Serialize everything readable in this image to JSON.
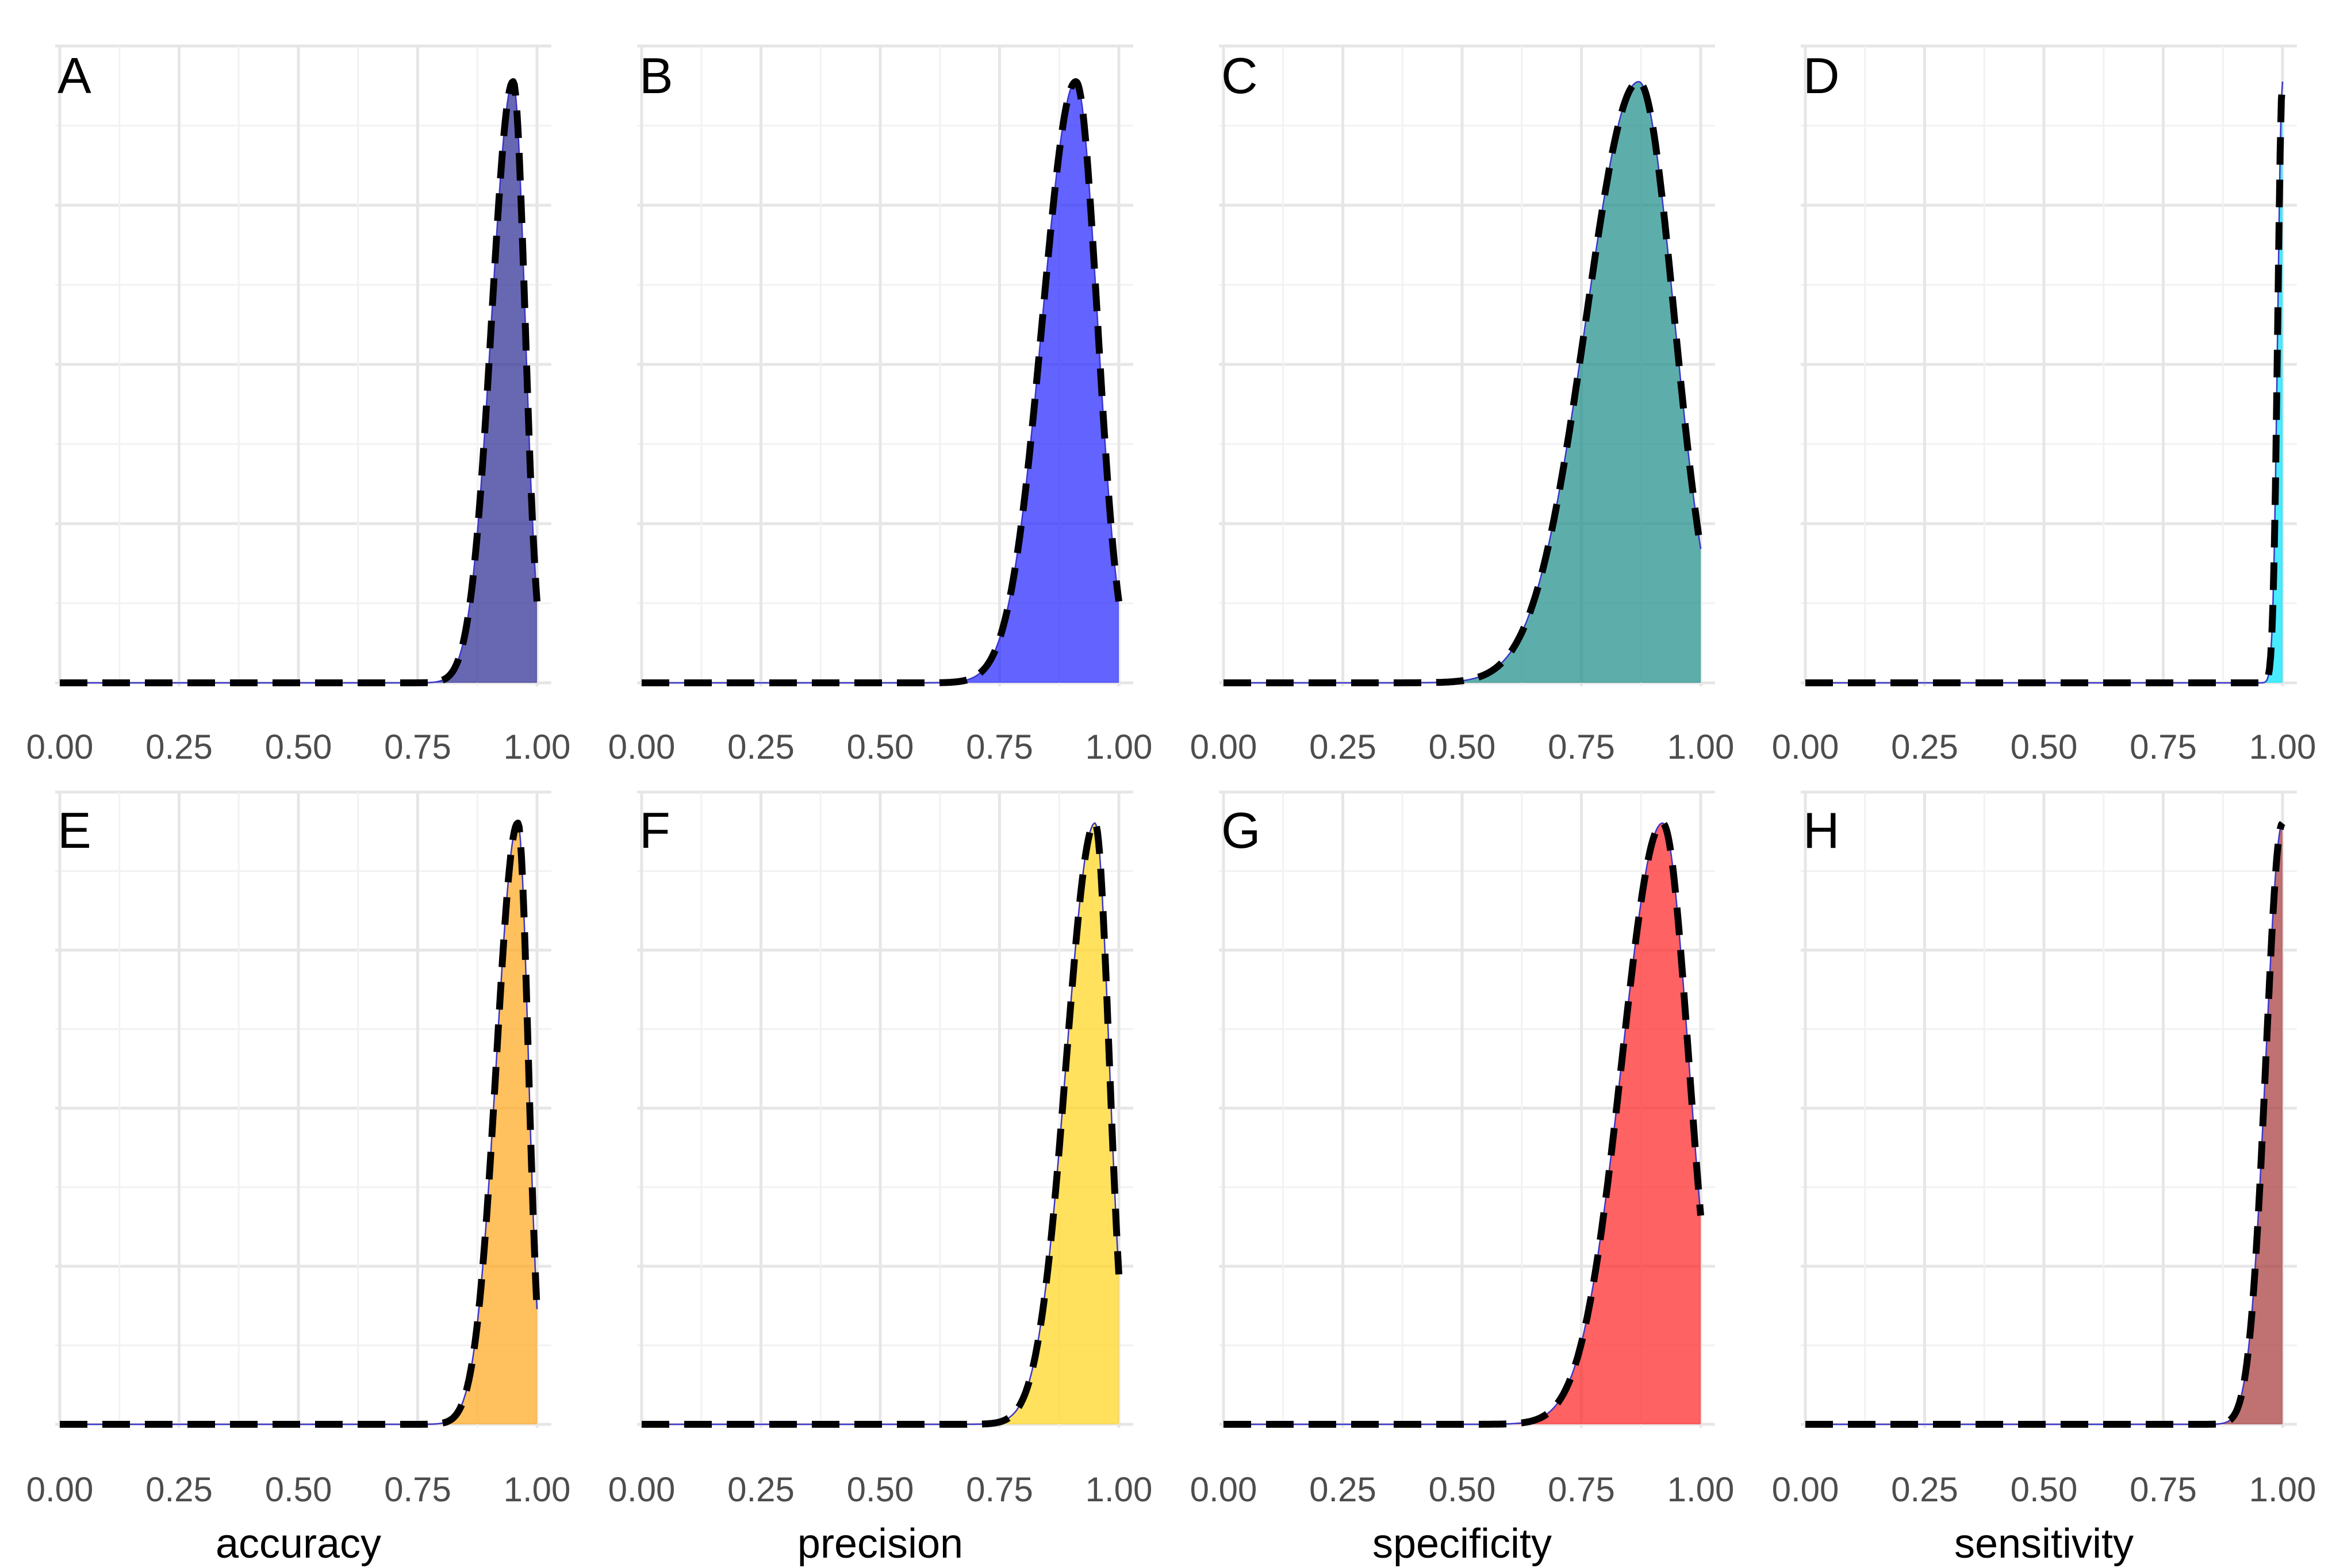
{
  "chart_data": [
    {
      "type": "area",
      "panel": "A",
      "xlabel": "",
      "xlim": [
        0,
        1
      ],
      "xticks": [
        "0.00",
        "0.25",
        "0.50",
        "0.75",
        "1.00"
      ],
      "fill_color": "#2e2e94",
      "peak": 0.95,
      "left_spread": 0.045,
      "right_spread": 0.025,
      "density_at_1": 0.35
    },
    {
      "type": "area",
      "panel": "B",
      "xlabel": "",
      "xlim": [
        0,
        1
      ],
      "xticks": [
        "0.00",
        "0.25",
        "0.50",
        "0.75",
        "1.00"
      ],
      "fill_color": "#2727ff",
      "peak": 0.91,
      "left_spread": 0.07,
      "right_spread": 0.045,
      "density_at_1": 0.34
    },
    {
      "type": "area",
      "panel": "C",
      "xlabel": "",
      "xlim": [
        0,
        1
      ],
      "xticks": [
        "0.00",
        "0.25",
        "0.50",
        "0.75",
        "1.00"
      ],
      "fill_color": "#1f8f8a",
      "peak": 0.87,
      "left_spread": 0.11,
      "right_spread": 0.075,
      "density_at_1": 0.33
    },
    {
      "type": "area",
      "panel": "D",
      "xlabel": "",
      "xlim": [
        0,
        1
      ],
      "xticks": [
        "0.00",
        "0.25",
        "0.50",
        "0.75",
        "1.00"
      ],
      "fill_color": "#00e5ff",
      "peak": 1.0,
      "left_spread": 0.01,
      "right_spread": 0.01,
      "density_at_1": 1.0
    },
    {
      "type": "area",
      "panel": "E",
      "xlabel": "accuracy",
      "xlim": [
        0,
        1
      ],
      "xticks": [
        "0.00",
        "0.25",
        "0.50",
        "0.75",
        "1.00"
      ],
      "fill_color": "#ffa820",
      "peak": 0.96,
      "left_spread": 0.045,
      "right_spread": 0.022,
      "density_at_1": 0.38
    },
    {
      "type": "area",
      "panel": "F",
      "xlabel": "precision",
      "xlim": [
        0,
        1
      ],
      "xticks": [
        "0.00",
        "0.25",
        "0.50",
        "0.75",
        "1.00"
      ],
      "fill_color": "#ffd51e",
      "peak": 0.95,
      "left_spread": 0.06,
      "right_spread": 0.03,
      "density_at_1": 0.38
    },
    {
      "type": "area",
      "panel": "G",
      "xlabel": "specificity",
      "xlim": [
        0,
        1
      ],
      "xticks": [
        "0.00",
        "0.25",
        "0.50",
        "0.75",
        "1.00"
      ],
      "fill_color": "#ff2525",
      "peak": 0.92,
      "left_spread": 0.085,
      "right_spread": 0.055,
      "density_at_1": 0.38
    },
    {
      "type": "area",
      "panel": "H",
      "xlabel": "sensitivity",
      "xlim": [
        0,
        1
      ],
      "xticks": [
        "0.00",
        "0.25",
        "0.50",
        "0.75",
        "1.00"
      ],
      "fill_color": "#a83a3a",
      "peak": 1.0,
      "left_spread": 0.035,
      "right_spread": 0.01,
      "density_at_1": 1.0
    }
  ]
}
